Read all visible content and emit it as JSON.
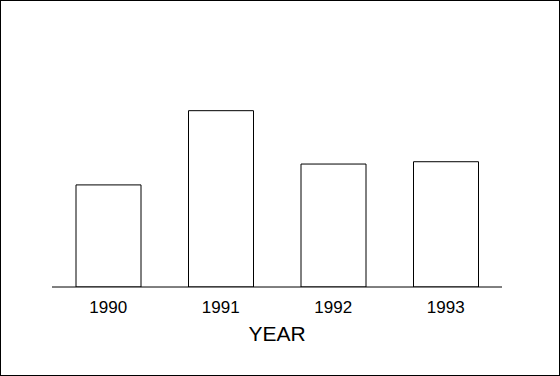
{
  "chart_data": {
    "type": "bar",
    "categories": [
      "1990",
      "1991",
      "1992",
      "1993"
    ],
    "values": [
      44,
      76,
      53,
      54
    ],
    "color": "#ffffff",
    "x_label": "YEAR",
    "ylim": [
      0,
      100
    ],
    "grid": false,
    "tick_labels": "x"
  }
}
